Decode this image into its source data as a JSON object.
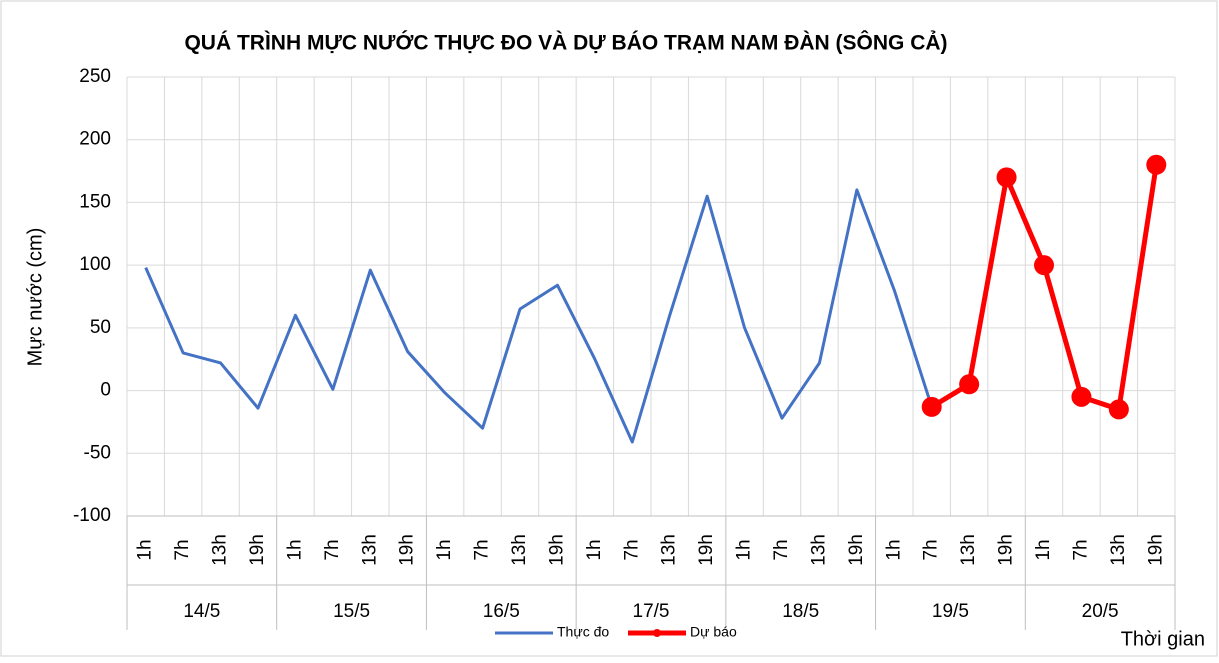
{
  "chart_data": {
    "type": "line",
    "title": "QUÁ TRÌNH MỰC NƯỚC THỰC ĐO VÀ DỰ BÁO TRẠM NAM ĐÀN (SÔNG CẢ)",
    "y_label": "Mực nước (cm)",
    "x_label": "Thời gian",
    "categories": [
      "1h",
      "7h",
      "13h",
      "19h",
      "1h",
      "7h",
      "13h",
      "19h",
      "1h",
      "7h",
      "13h",
      "19h",
      "1h",
      "7h",
      "13h",
      "19h",
      "1h",
      "7h",
      "13h",
      "19h",
      "1h",
      "7h",
      "13h",
      "19h",
      "1h",
      "7h",
      "13h",
      "19h"
    ],
    "days": [
      "14/5",
      "15/5",
      "16/5",
      "17/5",
      "18/5",
      "19/5",
      "20/5"
    ],
    "series": [
      {
        "name": "Thực đo",
        "color": "#4472c4",
        "marker": false,
        "values": [
          98,
          30,
          22,
          -14,
          60,
          1,
          96,
          31,
          -2,
          -30,
          65,
          84,
          25,
          -41,
          60,
          155,
          50,
          -22,
          22,
          160,
          80,
          -13,
          null,
          null,
          null,
          null,
          null,
          null
        ]
      },
      {
        "name": "Dự báo",
        "color": "#ff0000",
        "marker": true,
        "values": [
          null,
          null,
          null,
          null,
          null,
          null,
          null,
          null,
          null,
          null,
          null,
          null,
          null,
          null,
          null,
          null,
          null,
          null,
          null,
          null,
          null,
          -13,
          5,
          170,
          100,
          -5,
          -15,
          180
        ]
      }
    ],
    "ylim": [
      -100,
      250
    ],
    "yticks": [
      -100,
      -50,
      0,
      50,
      100,
      150,
      200,
      250
    ],
    "grid": true
  }
}
